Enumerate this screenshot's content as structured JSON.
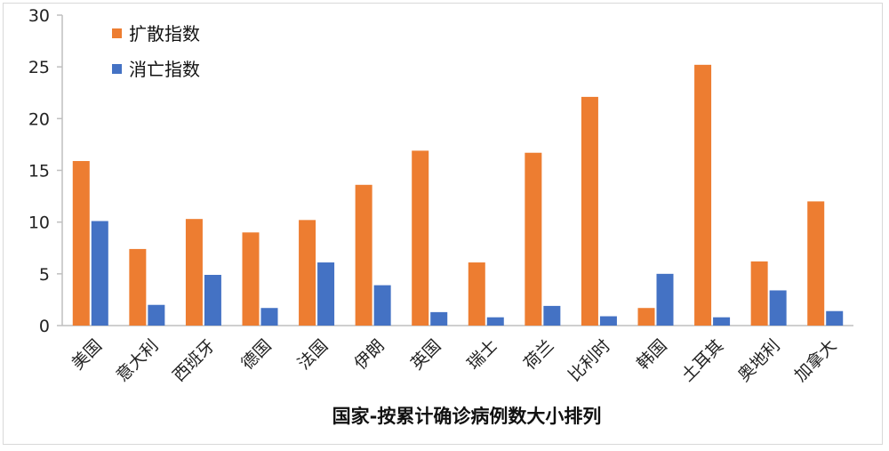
{
  "chart_data": {
    "type": "bar",
    "title": "",
    "xlabel": "国家-按累计确诊病例数大小排列",
    "ylabel": "",
    "ylim": [
      0,
      30
    ],
    "yticks": [
      0,
      5,
      10,
      15,
      20,
      25,
      30
    ],
    "grid": false,
    "legend_position": "top-left",
    "categories": [
      "美国",
      "意大利",
      "西班牙",
      "德国",
      "法国",
      "伊朗",
      "英国",
      "瑞士",
      "荷兰",
      "比利时",
      "韩国",
      "土耳其",
      "奥地利",
      "加拿大"
    ],
    "series": [
      {
        "name": "扩散指数",
        "color": "#ed7d31",
        "values": [
          15.9,
          7.4,
          10.3,
          9.0,
          10.2,
          13.6,
          16.9,
          6.1,
          16.7,
          22.1,
          1.7,
          25.2,
          6.2,
          12.0
        ]
      },
      {
        "name": "消亡指数",
        "color": "#4472c4",
        "values": [
          10.1,
          2.0,
          4.9,
          1.7,
          6.1,
          3.9,
          1.3,
          0.8,
          1.9,
          0.9,
          5.0,
          0.8,
          3.4,
          1.4
        ]
      }
    ]
  }
}
